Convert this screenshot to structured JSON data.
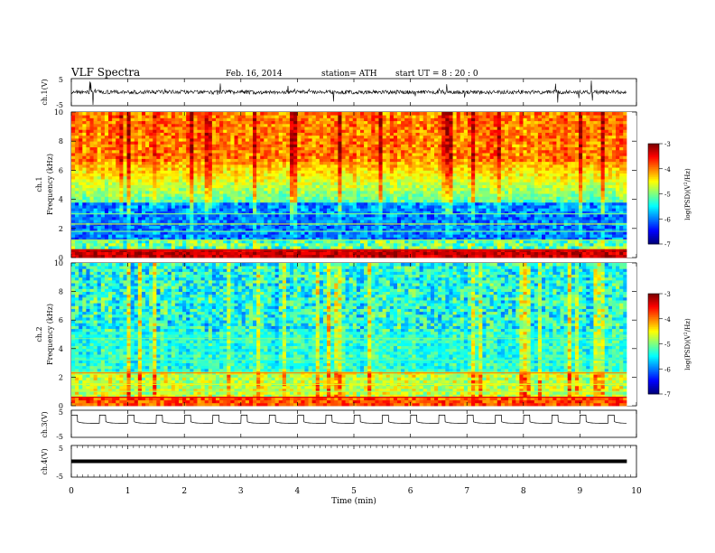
{
  "header": {
    "title": "VLF  Spectra",
    "date": "Feb. 16, 2014",
    "station": "station= ATH",
    "start_ut": "start  UT  =   8  : 20 : 0"
  },
  "chart_data": [
    {
      "id": "ch1-waveform",
      "type": "line",
      "ylabel": "ch.1(V)",
      "ylim": [
        -5,
        5
      ],
      "yticks": [
        "5",
        "-5"
      ],
      "baseline_v": 0,
      "noise_amplitude_v": 1.2
    },
    {
      "id": "ch1-spectrogram",
      "type": "heatmap",
      "ylabel": "ch.1\nFrequency (kHz)",
      "ylim": [
        0,
        10
      ],
      "yticks": [
        "0",
        "2",
        "4",
        "6",
        "8",
        "10"
      ],
      "colorbar": {
        "label": "log(PSD)(V^2/Hz)",
        "range": [
          -7,
          -3
        ],
        "ticks": [
          "-3",
          "-4",
          "-5",
          "-6",
          "-7"
        ]
      }
    },
    {
      "id": "ch2-spectrogram",
      "type": "heatmap",
      "ylabel": "ch.2\nFrequency (kHz)",
      "ylim": [
        0,
        10
      ],
      "yticks": [
        "0",
        "2",
        "4",
        "6",
        "8",
        "10"
      ],
      "colorbar": {
        "label": "log(PSD)(V^2/Hz)",
        "range": [
          -7,
          -3
        ],
        "ticks": [
          "-3",
          "-4",
          "-5",
          "-6",
          "-7"
        ]
      }
    },
    {
      "id": "ch3-waveform",
      "type": "line",
      "ylabel": "ch.3(V)",
      "ylim": [
        -5,
        5
      ],
      "yticks": [
        "5",
        "-5"
      ],
      "square_period_min": 0.5,
      "levels_v": [
        0.2,
        3.2
      ]
    },
    {
      "id": "ch4-waveform",
      "type": "line",
      "ylabel": "ch.4(V)",
      "ylim": [
        -5,
        5
      ],
      "yticks": [
        "5",
        "-5"
      ],
      "constant_v": 0
    }
  ],
  "xaxis": {
    "label": "Time  (min)",
    "range": [
      0,
      10
    ],
    "data_end_min": 9.83,
    "ticks": [
      "0",
      "1",
      "2",
      "3",
      "4",
      "5",
      "6",
      "7",
      "8",
      "9",
      "10"
    ]
  },
  "colors": {
    "spectrum_low": "#000066",
    "spectrum_mid": "#00d8ff",
    "spectrum_high": "#ff0000"
  }
}
